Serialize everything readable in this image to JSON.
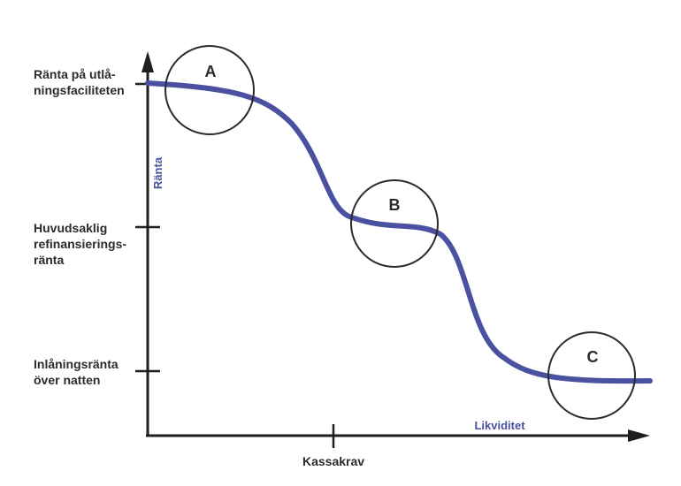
{
  "axes": {
    "y_title": "Ränta",
    "x_title": "Likviditet",
    "axis_color": "#1f1f1f",
    "title_color": "#4a51a0"
  },
  "y_levels": [
    {
      "lines": [
        "Ränta på utlå-",
        "ningsfaciliteten"
      ]
    },
    {
      "lines": [
        "Huvudsaklig",
        "refinansierings-",
        "ränta"
      ]
    },
    {
      "lines": [
        "Inlåningsränta",
        "över natten"
      ]
    }
  ],
  "x_marker": {
    "label": "Kassakrav"
  },
  "curve": {
    "color": "#4a51a0"
  },
  "regions": [
    {
      "label": "A"
    },
    {
      "label": "B"
    },
    {
      "label": "C"
    }
  ]
}
